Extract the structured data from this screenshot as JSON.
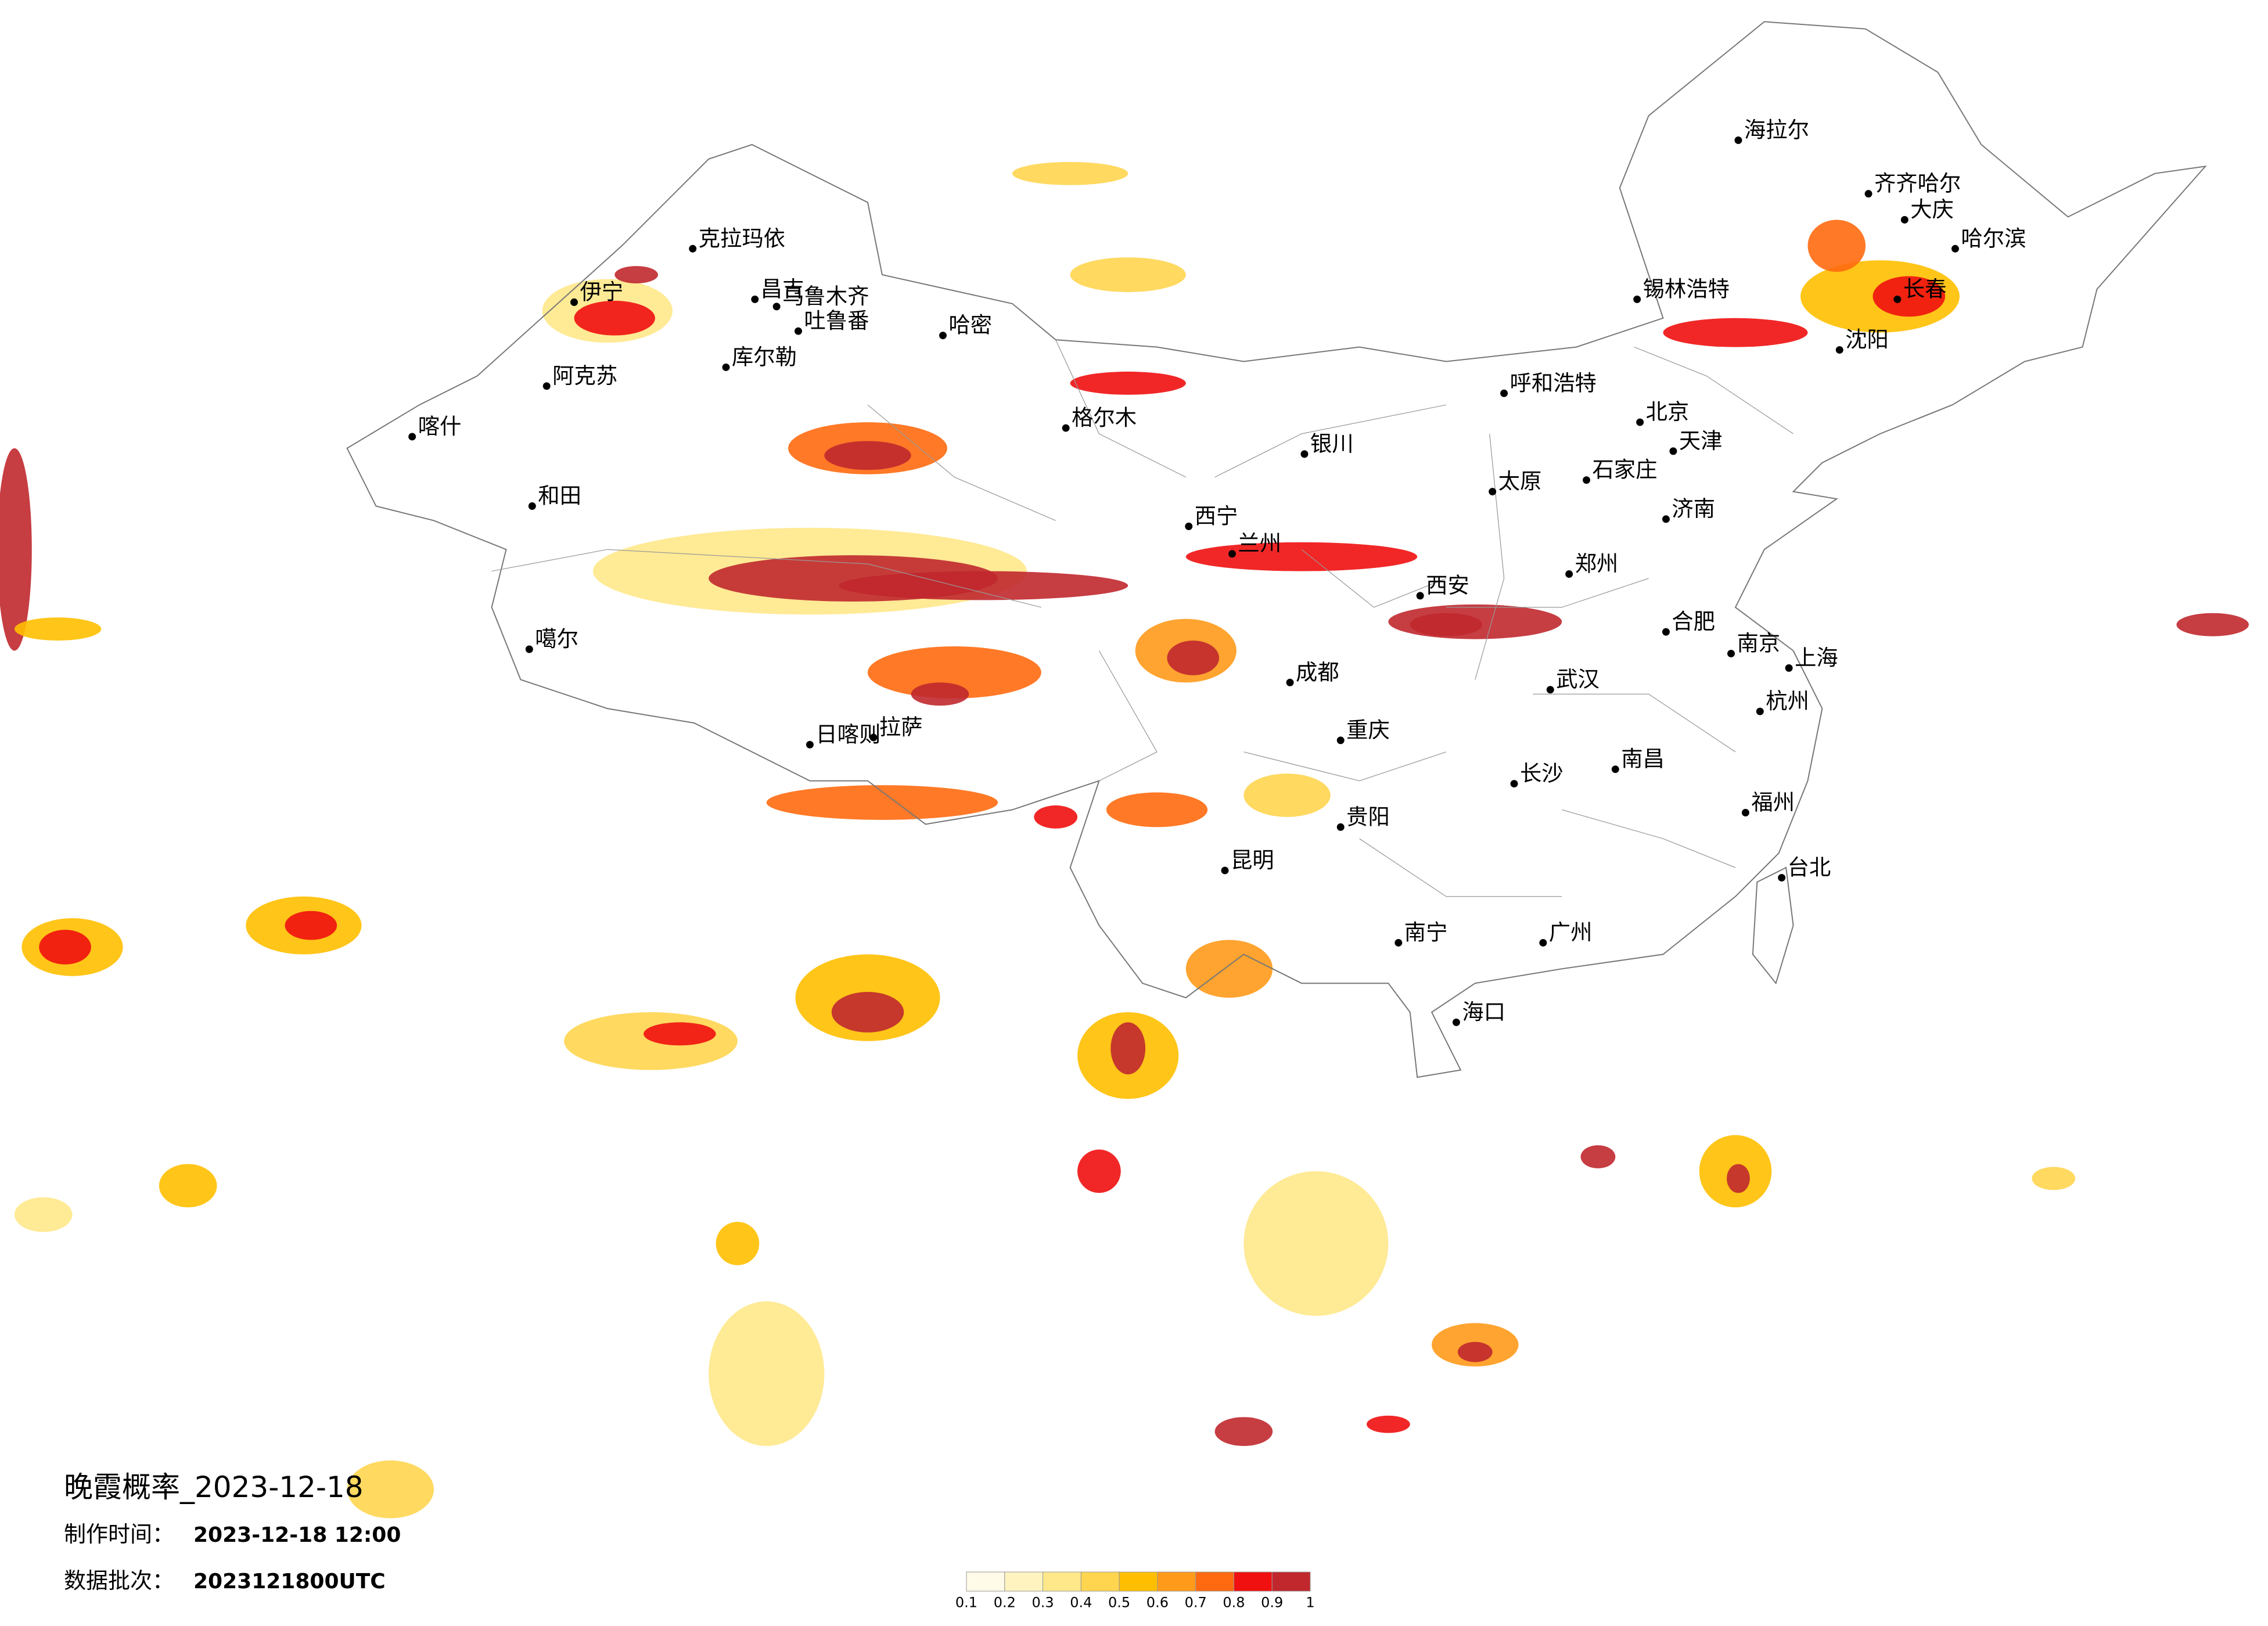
{
  "map": {
    "title": "晚霞概率_2023-12-18",
    "production_label": "制作时间：",
    "production_time": "2023-12-18 12:00",
    "batch_label": "数据批次：",
    "batch": "2023121800UTC",
    "cities": [
      "克拉玛依",
      "伊宁",
      "昌吉",
      "乌鲁木齐",
      "吐鲁番",
      "哈密",
      "库尔勒",
      "阿克苏",
      "喀什",
      "和田",
      "噶尔",
      "日喀则",
      "拉萨",
      "格尔木",
      "西宁",
      "兰州",
      "银川",
      "呼和浩特",
      "北京",
      "天津",
      "石家庄",
      "太原",
      "西安",
      "郑州",
      "济南",
      "南京",
      "上海",
      "武汉",
      "长沙",
      "成都",
      "重庆",
      "贵阳",
      "昆明",
      "南宁",
      "广州",
      "福州",
      "南昌",
      "合肥",
      "杭州",
      "哈尔滨",
      "长春",
      "沈阳",
      "海口",
      "台北",
      "齐齐哈尔",
      "海拉尔",
      "锡林浩特",
      "大庆"
    ]
  },
  "legend": {
    "colors": [
      "#fffbe8",
      "#fff3c0",
      "#ffe88a",
      "#ffd54f",
      "#ffbf00",
      "#ff9a1a",
      "#ff6a10",
      "#f01010",
      "#c0282e"
    ],
    "ticks": [
      0.1,
      0.2,
      0.3,
      0.4,
      0.5,
      0.6,
      0.7,
      0.8,
      0.9,
      1
    ]
  }
}
